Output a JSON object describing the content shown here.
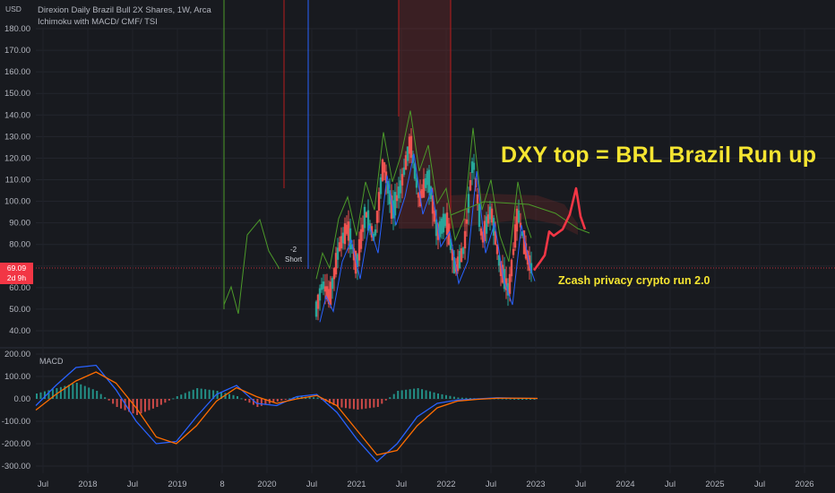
{
  "header": {
    "symbol_line": "Direxion Daily Brazil Bull 2X Shares, 1W, Arca",
    "indicator_line": "Ichimoku with MACD/ CMF/ TSI",
    "currency": "USD"
  },
  "price_tag": {
    "price": "69.09",
    "countdown": "2d 9h"
  },
  "annotations": {
    "headline": "DXY top = BRL Brazil Run up",
    "sub": "Zcash privacy crypto run 2.0",
    "short_signal": "-2",
    "short_text": "Short"
  },
  "macd_pane": {
    "label": "MACD"
  },
  "colors": {
    "background": "#181a1f",
    "up_candle": "#26a69a",
    "down_candle": "#ef5350",
    "cloud_green": "#4c9a2a",
    "cloud_red": "#b71c1c",
    "macd_line": "#2962ff",
    "signal_line": "#ff6d00",
    "projection": "#f23645",
    "annotation": "#f5e531"
  },
  "chart_data": [
    {
      "type": "candlestick",
      "title": "Direxion Daily Brazil Bull 2X Shares, 1W, Arca",
      "ylabel": "USD",
      "yticks": [
        "40.00",
        "50.00",
        "60.00",
        "70.00",
        "80.00",
        "90.00",
        "100.00",
        "110.00",
        "120.00",
        "130.00",
        "140.00",
        "150.00",
        "160.00",
        "170.00",
        "180.00"
      ],
      "xticks": [
        "Jul",
        "2018",
        "Jul",
        "2019",
        "8",
        "2020",
        "Jul",
        "2021",
        "Jul",
        "2022",
        "Jul",
        "2023",
        "Jul",
        "2024",
        "Jul",
        "2025",
        "Jul",
        "2026"
      ],
      "ylim": [
        35,
        185
      ],
      "current_price": 69.09,
      "price_path": [
        [
          2020.55,
          50
        ],
        [
          2020.62,
          62
        ],
        [
          2020.7,
          55
        ],
        [
          2020.8,
          78
        ],
        [
          2020.9,
          88
        ],
        [
          2021.0,
          70
        ],
        [
          2021.1,
          95
        ],
        [
          2021.2,
          82
        ],
        [
          2021.3,
          118
        ],
        [
          2021.4,
          95
        ],
        [
          2021.5,
          108
        ],
        [
          2021.6,
          128
        ],
        [
          2021.7,
          100
        ],
        [
          2021.8,
          112
        ],
        [
          2021.9,
          85
        ],
        [
          2022.0,
          92
        ],
        [
          2022.1,
          68
        ],
        [
          2022.2,
          78
        ],
        [
          2022.3,
          120
        ],
        [
          2022.4,
          82
        ],
        [
          2022.5,
          96
        ],
        [
          2022.6,
          70
        ],
        [
          2022.7,
          58
        ],
        [
          2022.8,
          95
        ],
        [
          2022.9,
          75
        ],
        [
          2022.95,
          69
        ]
      ],
      "projection": [
        [
          2022.98,
          68
        ],
        [
          2023.05,
          72
        ],
        [
          2023.1,
          75
        ],
        [
          2023.15,
          86
        ],
        [
          2023.2,
          84
        ],
        [
          2023.3,
          87
        ],
        [
          2023.38,
          94
        ],
        [
          2023.45,
          106
        ],
        [
          2023.5,
          93
        ],
        [
          2023.55,
          87
        ]
      ]
    },
    {
      "type": "bar",
      "title": "MACD",
      "yticks": [
        "200.00",
        "100.00",
        "0.00",
        "-100.00",
        "-200.00",
        "-300.00"
      ],
      "ylim": [
        -320,
        210
      ],
      "series": [
        {
          "name": "MACD",
          "values": [
            -30,
            60,
            140,
            150,
            40,
            -100,
            -200,
            -190,
            -80,
            20,
            60,
            -20,
            -30,
            10,
            20,
            -60,
            -180,
            -280,
            -200,
            -80,
            -20,
            -5,
            0,
            5,
            3,
            2
          ]
        },
        {
          "name": "Signal",
          "values": [
            -50,
            20,
            80,
            120,
            70,
            -40,
            -170,
            -200,
            -120,
            -10,
            50,
            10,
            -20,
            0,
            15,
            -30,
            -140,
            -250,
            -230,
            -120,
            -40,
            -10,
            -2,
            3,
            3,
            2
          ]
        }
      ]
    }
  ]
}
